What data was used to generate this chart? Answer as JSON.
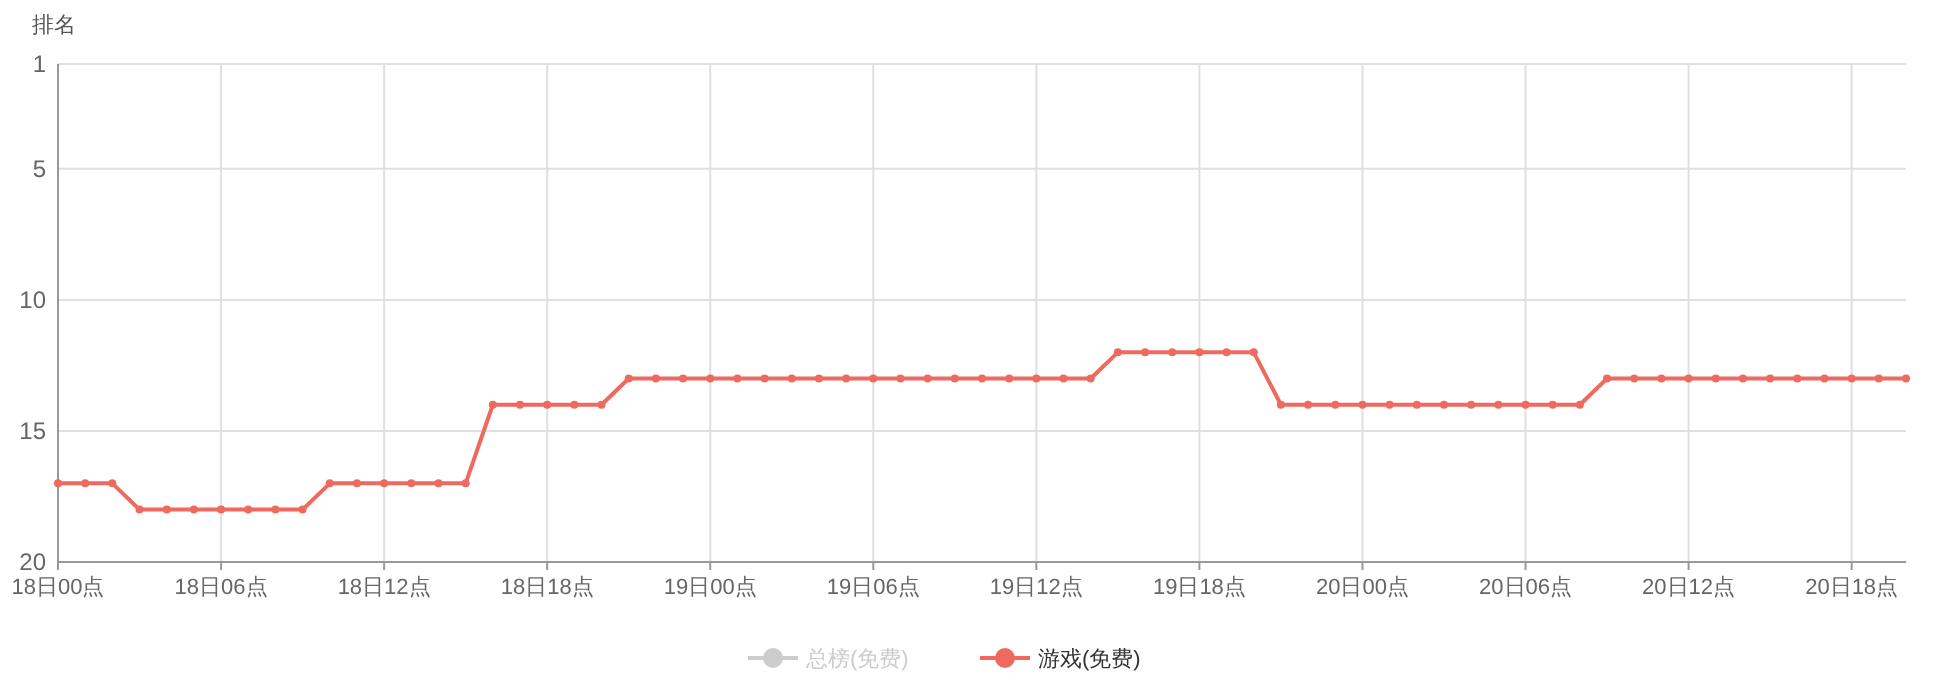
{
  "chart_data": {
    "type": "line",
    "ylabel": "排名",
    "categories": [
      "18日00点",
      null,
      null,
      null,
      null,
      null,
      "18日06点",
      null,
      null,
      null,
      null,
      null,
      "18日12点",
      null,
      null,
      null,
      null,
      null,
      "18日18点",
      null,
      null,
      null,
      null,
      null,
      "19日00点",
      null,
      null,
      null,
      null,
      null,
      "19日06点",
      null,
      null,
      null,
      null,
      null,
      "19日12点",
      null,
      null,
      null,
      null,
      null,
      "19日18点",
      null,
      null,
      null,
      null,
      null,
      "20日00点",
      null,
      null,
      null,
      null,
      null,
      "20日06点",
      null,
      null,
      null,
      null,
      null,
      "20日12点",
      null,
      null,
      null,
      null,
      null,
      "20日18点",
      null,
      null
    ],
    "ylim": [
      20,
      1
    ],
    "yticks": [
      1,
      5,
      10,
      15,
      20
    ],
    "grid": true,
    "legend": "bottom",
    "marker": "circle",
    "line_style": "solid",
    "series": [
      {
        "name": "总榜(免费)",
        "color": "#cccccc",
        "values": [
          null,
          null,
          null,
          null,
          null,
          null,
          null,
          null,
          null,
          null,
          null,
          null,
          null,
          null,
          null,
          null,
          null,
          null,
          null,
          null,
          null,
          null,
          null,
          null,
          null,
          null,
          null,
          null,
          null,
          null,
          null,
          null,
          null,
          null,
          null,
          null,
          null,
          null,
          null,
          null,
          null,
          null,
          null,
          null,
          null,
          null,
          null,
          null,
          null,
          null,
          null,
          null,
          null,
          null,
          null,
          null,
          null,
          null,
          null,
          null,
          null,
          null,
          null,
          null,
          null,
          null,
          null,
          null,
          null
        ]
      },
      {
        "name": "游戏(免费)",
        "color": "#ee6a5e",
        "values": [
          17,
          17,
          17,
          18,
          18,
          18,
          18,
          18,
          18,
          18,
          17,
          17,
          17,
          17,
          17,
          17,
          14,
          14,
          14,
          14,
          14,
          13,
          13,
          13,
          13,
          13,
          13,
          13,
          13,
          13,
          13,
          13,
          13,
          13,
          13,
          13,
          13,
          13,
          13,
          12,
          12,
          12,
          12,
          12,
          12,
          14,
          14,
          14,
          14,
          14,
          14,
          14,
          14,
          14,
          14,
          14,
          14,
          13,
          13,
          13,
          13,
          13,
          13,
          13,
          13,
          13,
          13,
          13,
          13
        ]
      }
    ]
  }
}
